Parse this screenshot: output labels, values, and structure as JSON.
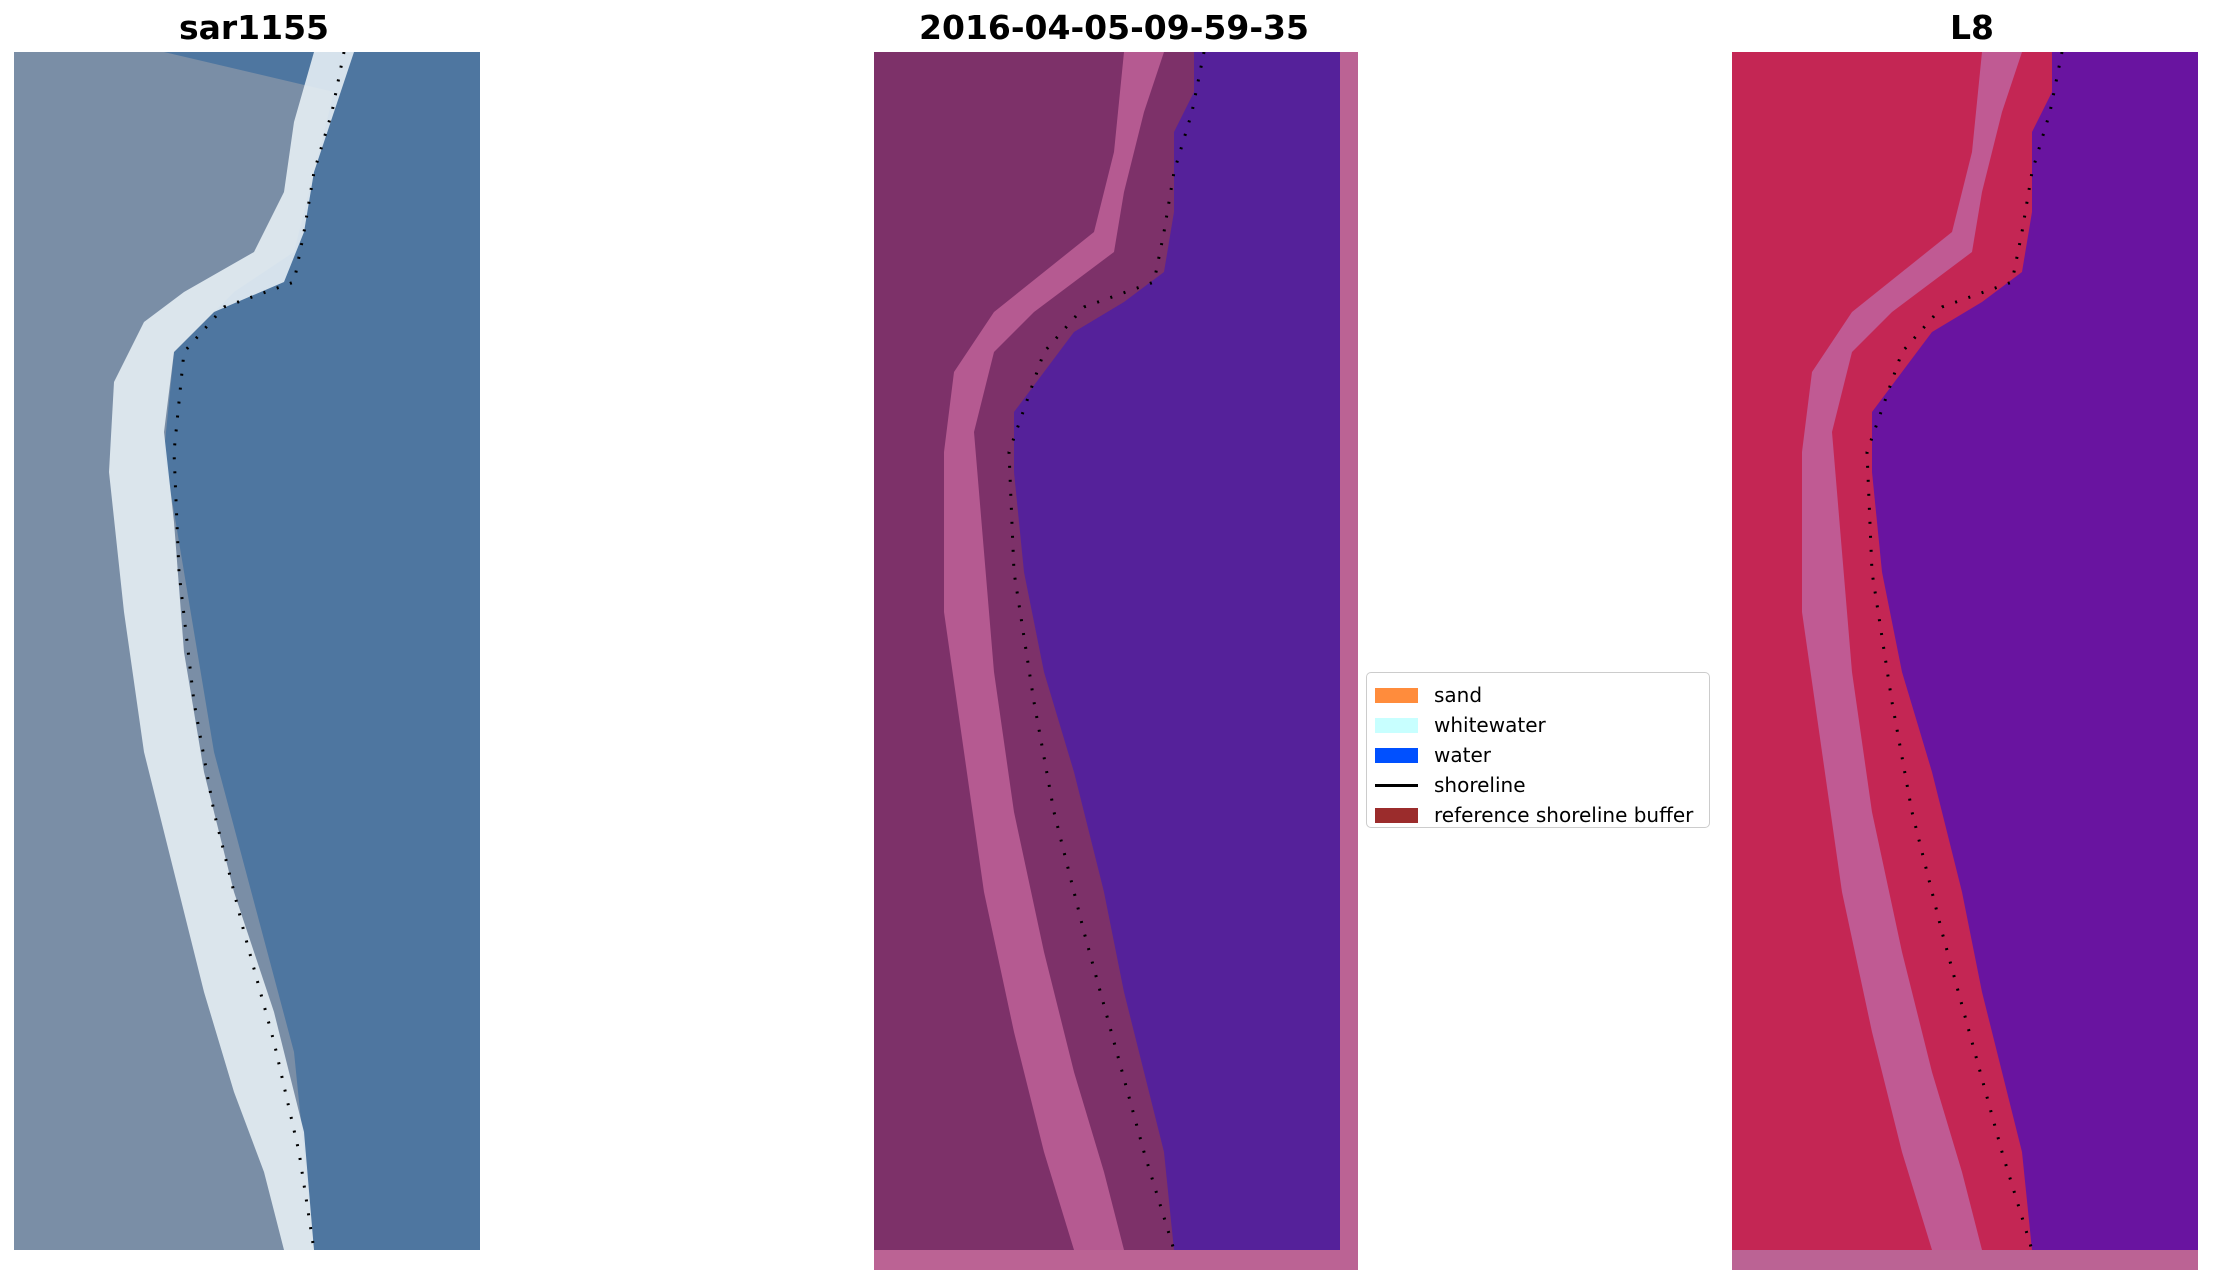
{
  "titles": {
    "left": "sar1155",
    "middle": "2016-04-05-09-59-35",
    "right": "L8"
  },
  "legend": {
    "items": [
      {
        "label": "sand",
        "type": "patch",
        "color": "#ff8c3c"
      },
      {
        "label": "whitewater",
        "type": "patch",
        "color": "#c8ffff"
      },
      {
        "label": "water",
        "type": "patch",
        "color": "#0050ff"
      },
      {
        "label": "shoreline",
        "type": "line",
        "color": "#000000"
      },
      {
        "label": "reference shoreline buffer",
        "type": "patch",
        "color": "#9b2c2c"
      }
    ]
  },
  "colors": {
    "sar_land": "#7a8ea6",
    "sar_water": "#4e76a0",
    "sar_beach": "#e6eef4",
    "class_land": "#7d3169",
    "class_beach": "#b55a91",
    "class_water": "#55219a",
    "class_pad": "#bb6394",
    "l8_land": "#c42654",
    "l8_beach": "#c05a93",
    "l8_water": "#6914a0",
    "l8_pad": "#bb6394"
  }
}
